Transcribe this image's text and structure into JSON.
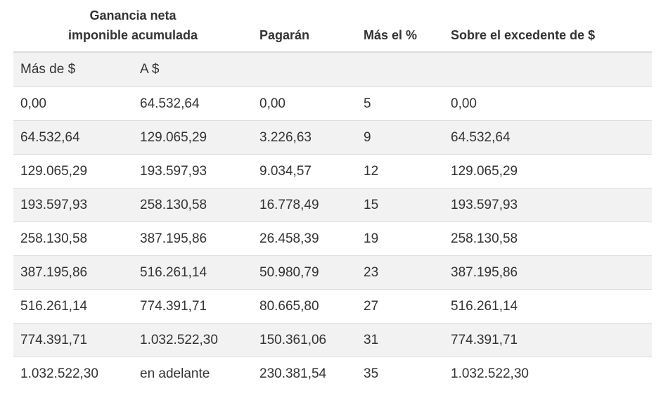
{
  "header": {
    "group_line1": "Ganancia neta",
    "group_line2": "imponible acumulada",
    "col_pagaran": "Pagarán",
    "col_mas_pct": "Más el %",
    "col_excedente": "Sobre el excedente de $"
  },
  "subheader": {
    "mas_de": "Más de $",
    "a": "A $"
  },
  "rows": [
    {
      "mas_de": "0,00",
      "a": "64.532,64",
      "pagaran": "0,00",
      "pct": "5",
      "excedente": "0,00"
    },
    {
      "mas_de": "64.532,64",
      "a": "129.065,29",
      "pagaran": "3.226,63",
      "pct": "9",
      "excedente": "64.532,64"
    },
    {
      "mas_de": "129.065,29",
      "a": "193.597,93",
      "pagaran": "9.034,57",
      "pct": "12",
      "excedente": "129.065,29"
    },
    {
      "mas_de": "193.597,93",
      "a": "258.130,58",
      "pagaran": "16.778,49",
      "pct": "15",
      "excedente": "193.597,93"
    },
    {
      "mas_de": "258.130,58",
      "a": "387.195,86",
      "pagaran": "26.458,39",
      "pct": "19",
      "excedente": "258.130,58"
    },
    {
      "mas_de": "387.195,86",
      "a": "516.261,14",
      "pagaran": "50.980,79",
      "pct": "23",
      "excedente": "387.195,86"
    },
    {
      "mas_de": "516.261,14",
      "a": "774.391,71",
      "pagaran": "80.665,80",
      "pct": "27",
      "excedente": "516.261,14"
    },
    {
      "mas_de": "774.391,71",
      "a": "1.032.522,30",
      "pagaran": "150.361,06",
      "pct": "31",
      "excedente": "774.391,71"
    },
    {
      "mas_de": "1.032.522,30",
      "a": "en adelante",
      "pagaran": "230.381,54",
      "pct": "35",
      "excedente": "1.032.522,30"
    }
  ]
}
